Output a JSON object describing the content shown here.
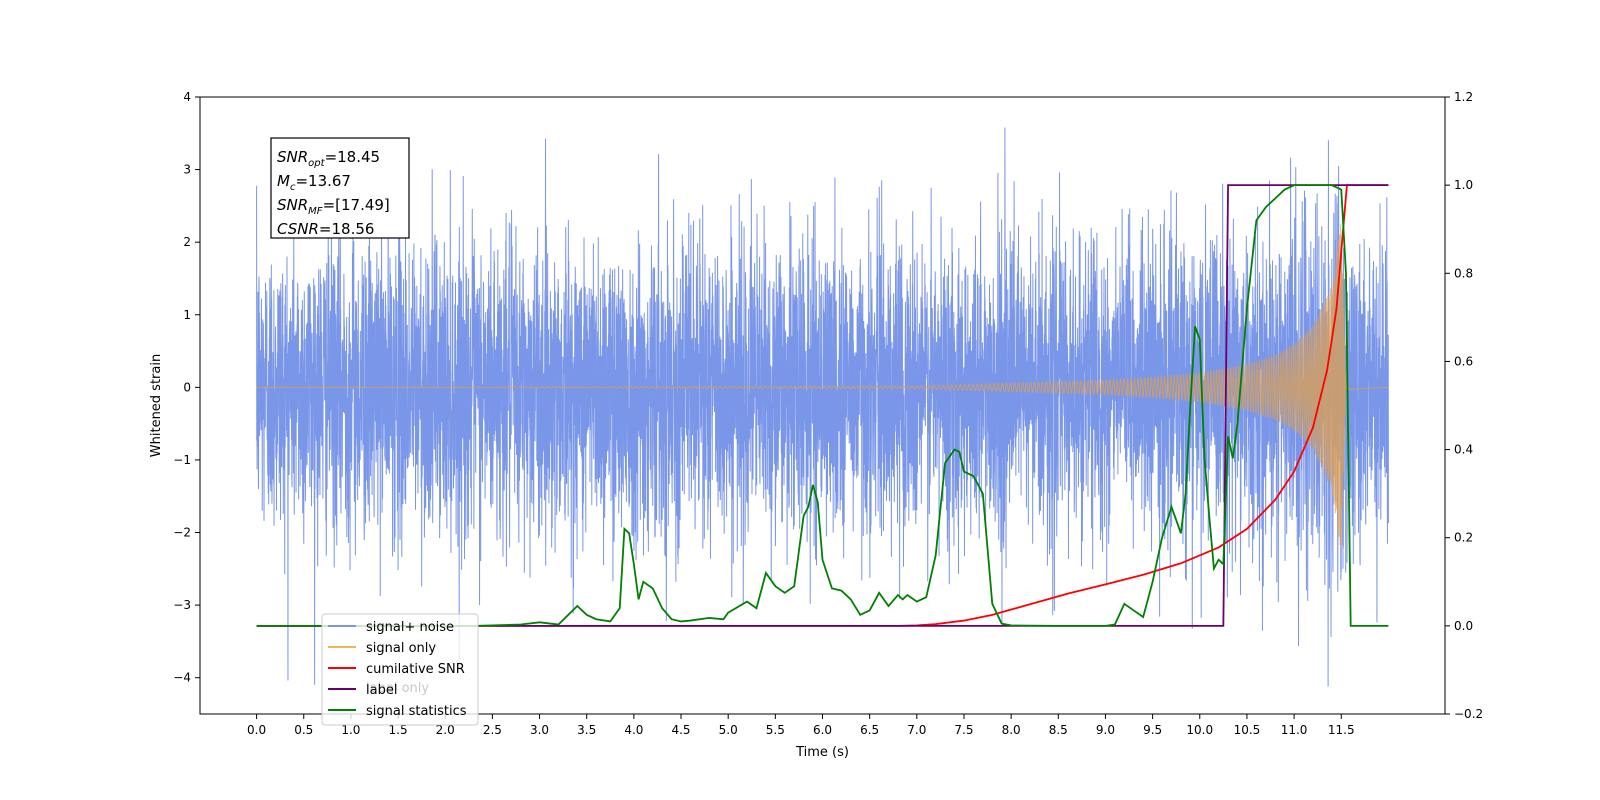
{
  "chart_data": {
    "type": "line",
    "xlabel": "Time (s)",
    "ylabel": "Whitened strain",
    "xlim": [
      -0.6,
      12.6
    ],
    "ylim": [
      -4.5,
      4.0
    ],
    "y2lim": [
      -0.2,
      1.2
    ],
    "x_ticks": [
      "0.0",
      "0.5",
      "1.0",
      "1.5",
      "2.0",
      "2.5",
      "3.0",
      "3.5",
      "4.0",
      "4.5",
      "5.0",
      "5.5",
      "6.0",
      "6.5",
      "7.0",
      "7.5",
      "8.0",
      "8.5",
      "9.0",
      "9.5",
      "10.0",
      "10.5",
      "11.0",
      "11.5"
    ],
    "y_ticks": [
      "4",
      "3",
      "2",
      "1",
      "0",
      "−1",
      "−2",
      "−3",
      "−4"
    ],
    "y2_ticks": [
      "1.2",
      "1.0",
      "0.8",
      "0.6",
      "0.4",
      "0.2",
      "0.0",
      "−0.2"
    ],
    "annotation": {
      "lines": [
        {
          "main": "SNR",
          "sub": "opt",
          "value": "=18.45"
        },
        {
          "main": "M",
          "sub": "c",
          "value": "=13.67"
        },
        {
          "main": "SNR",
          "sub": "MF",
          "value": "=[17.49]"
        },
        {
          "main": "CSNR",
          "sub": "",
          "value": "=18.56"
        }
      ]
    },
    "legend": {
      "placement": "lower-left",
      "entries": [
        {
          "label": "signal+ noise",
          "color": "#7a96e8"
        },
        {
          "label": "signal only",
          "color": "#f5b556"
        },
        {
          "label": "cumilative SNR",
          "color": "#ff0000"
        },
        {
          "label": "label",
          "color": "#6a006a"
        },
        {
          "label": "signal statistics",
          "color": "#008000"
        }
      ],
      "hidden_label": "label only"
    },
    "series": [
      {
        "name": "signal+ noise",
        "axis": "left",
        "color": "#7a96e8",
        "x_range": [
          0.0,
          12.0
        ],
        "amplitude_envelope": 1.0,
        "peaks_max": 3.6,
        "peaks_min": -4.1
      },
      {
        "name": "signal only",
        "axis": "left",
        "color": "#f5b556",
        "x": [
          0.0,
          7.0,
          8.0,
          9.0,
          9.5,
          10.0,
          10.5,
          10.8,
          11.0,
          11.2,
          11.4,
          11.5,
          11.55,
          12.0
        ],
        "envelope": [
          0.0,
          0.02,
          0.06,
          0.1,
          0.14,
          0.2,
          0.32,
          0.45,
          0.6,
          0.85,
          1.4,
          2.3,
          0.03,
          0.0
        ]
      },
      {
        "name": "cumilative SNR",
        "axis": "right",
        "color": "#ff0000",
        "x": [
          0.0,
          6.8,
          7.0,
          7.2,
          7.5,
          7.8,
          8.0,
          8.3,
          8.6,
          9.0,
          9.4,
          9.8,
          10.2,
          10.5,
          10.8,
          11.0,
          11.2,
          11.35,
          11.45,
          11.52,
          11.56,
          12.0
        ],
        "y": [
          0.0,
          0.0,
          0.001,
          0.004,
          0.012,
          0.025,
          0.037,
          0.055,
          0.073,
          0.094,
          0.116,
          0.142,
          0.178,
          0.22,
          0.286,
          0.35,
          0.45,
          0.58,
          0.72,
          0.9,
          1.0,
          1.0
        ]
      },
      {
        "name": "label",
        "axis": "right",
        "color": "#6a006a",
        "x": [
          0.0,
          10.25,
          10.3,
          11.55,
          11.58,
          12.0
        ],
        "y": [
          0.0,
          0.0,
          1.0,
          1.0,
          1.0,
          1.0
        ]
      },
      {
        "name": "signal statistics",
        "axis": "right",
        "color": "#008000",
        "x": [
          0.0,
          2.3,
          2.5,
          2.8,
          3.0,
          3.2,
          3.4,
          3.5,
          3.6,
          3.75,
          3.85,
          3.9,
          3.95,
          4.0,
          4.05,
          4.1,
          4.2,
          4.3,
          4.4,
          4.5,
          4.6,
          4.8,
          4.95,
          5.0,
          5.2,
          5.3,
          5.4,
          5.5,
          5.6,
          5.7,
          5.8,
          5.85,
          5.9,
          5.95,
          6.0,
          6.1,
          6.2,
          6.3,
          6.4,
          6.5,
          6.6,
          6.7,
          6.8,
          6.85,
          6.9,
          7.0,
          7.1,
          7.2,
          7.3,
          7.4,
          7.45,
          7.5,
          7.6,
          7.7,
          7.8,
          7.9,
          8.0,
          8.5,
          9.0,
          9.1,
          9.2,
          9.3,
          9.4,
          9.5,
          9.6,
          9.7,
          9.8,
          9.85,
          9.9,
          9.95,
          10.0,
          10.05,
          10.1,
          10.15,
          10.2,
          10.25,
          10.3,
          10.35,
          10.4,
          10.5,
          10.6,
          10.7,
          10.8,
          10.9,
          11.0,
          11.1,
          11.2,
          11.3,
          11.4,
          11.5,
          11.55,
          11.6,
          12.0
        ],
        "y": [
          0.0,
          0.0,
          0.001,
          0.003,
          0.008,
          0.003,
          0.045,
          0.025,
          0.015,
          0.01,
          0.04,
          0.22,
          0.21,
          0.14,
          0.06,
          0.1,
          0.085,
          0.04,
          0.015,
          0.01,
          0.012,
          0.018,
          0.015,
          0.03,
          0.055,
          0.04,
          0.12,
          0.09,
          0.075,
          0.09,
          0.25,
          0.27,
          0.32,
          0.28,
          0.15,
          0.085,
          0.08,
          0.06,
          0.025,
          0.035,
          0.075,
          0.045,
          0.07,
          0.06,
          0.07,
          0.055,
          0.065,
          0.16,
          0.37,
          0.4,
          0.395,
          0.35,
          0.34,
          0.3,
          0.05,
          0.005,
          0.001,
          0.0,
          0.0,
          0.003,
          0.05,
          0.035,
          0.02,
          0.1,
          0.2,
          0.27,
          0.21,
          0.3,
          0.5,
          0.68,
          0.65,
          0.38,
          0.25,
          0.13,
          0.15,
          0.14,
          0.43,
          0.38,
          0.46,
          0.72,
          0.92,
          0.95,
          0.97,
          0.99,
          1.0,
          1.0,
          1.0,
          1.0,
          1.0,
          0.99,
          0.8,
          0.0,
          0.0
        ]
      }
    ]
  }
}
